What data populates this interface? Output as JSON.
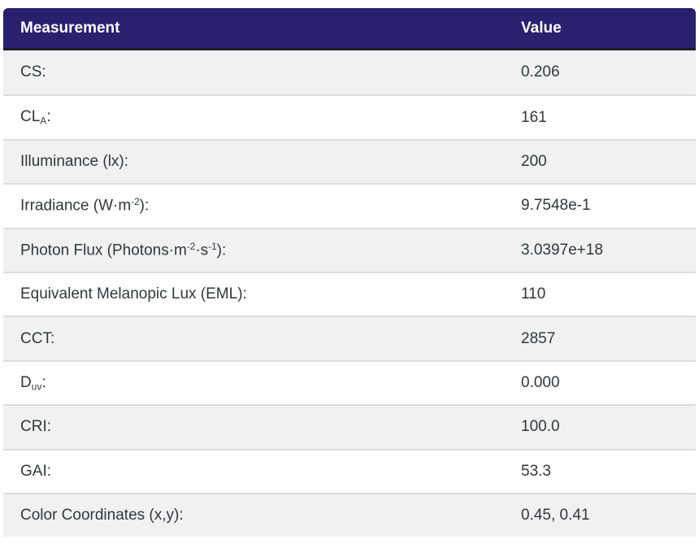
{
  "table": {
    "header": {
      "measurement": "Measurement",
      "value": "Value"
    },
    "rows": [
      {
        "label": [
          {
            "t": "CS:"
          }
        ],
        "value": "0.206"
      },
      {
        "label": [
          {
            "t": "CL"
          },
          {
            "t": "A",
            "s": "sub"
          },
          {
            "t": ":"
          }
        ],
        "value": "161"
      },
      {
        "label": [
          {
            "t": "Illuminance (lx):"
          }
        ],
        "value": "200"
      },
      {
        "label": [
          {
            "t": "Irradiance (W·m"
          },
          {
            "t": "-2",
            "s": "sup"
          },
          {
            "t": "):"
          }
        ],
        "value": "9.7548e-1"
      },
      {
        "label": [
          {
            "t": "Photon Flux (Photons·m"
          },
          {
            "t": "-2",
            "s": "sup"
          },
          {
            "t": "·s"
          },
          {
            "t": "-1",
            "s": "sup"
          },
          {
            "t": "):"
          }
        ],
        "value": "3.0397e+18"
      },
      {
        "label": [
          {
            "t": "Equivalent Melanopic Lux (EML):"
          }
        ],
        "value": "110"
      },
      {
        "label": [
          {
            "t": "CCT:"
          }
        ],
        "value": "2857"
      },
      {
        "label": [
          {
            "t": "D"
          },
          {
            "t": "uv",
            "s": "sub"
          },
          {
            "t": ":"
          }
        ],
        "value": "0.000"
      },
      {
        "label": [
          {
            "t": "CRI:"
          }
        ],
        "value": "100.0"
      },
      {
        "label": [
          {
            "t": "GAI:"
          }
        ],
        "value": "53.3"
      },
      {
        "label": [
          {
            "t": "Color Coordinates (x,y):"
          }
        ],
        "value": "0.45, 0.41"
      }
    ]
  },
  "colors": {
    "header_bg": "#29206e",
    "header_text": "#ffffff",
    "header_border": "#1d1d28",
    "row_alt_bg": "#f1f1f2",
    "row_bg": "#ffffff",
    "divider": "#dcdcde",
    "text": "#33363c"
  }
}
